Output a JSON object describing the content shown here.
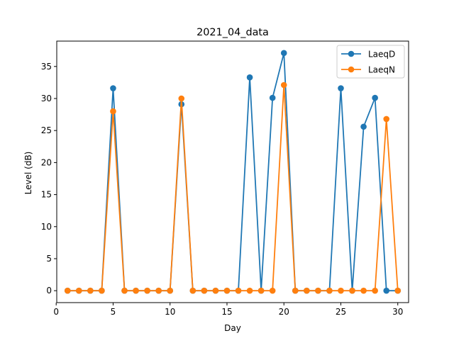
{
  "chart_data": {
    "type": "line",
    "title": "2021_04_data",
    "xlabel": "Day",
    "ylabel": "Level (dB)",
    "xlim": [
      0.05,
      30.95
    ],
    "ylim": [
      -1.86,
      38.96
    ],
    "xticks": [
      0,
      5,
      10,
      15,
      20,
      25,
      30
    ],
    "yticks": [
      0,
      5,
      10,
      15,
      20,
      25,
      30,
      35
    ],
    "grid": false,
    "legend_position": "top-right",
    "x": [
      1,
      2,
      3,
      4,
      5,
      6,
      7,
      8,
      9,
      10,
      11,
      12,
      13,
      14,
      15,
      16,
      17,
      18,
      19,
      20,
      21,
      22,
      23,
      24,
      25,
      26,
      27,
      28,
      29,
      30
    ],
    "series": [
      {
        "name": "LaeqD",
        "color": "#1f77b4",
        "values": [
          0,
          0,
          0,
          0,
          31.6,
          0,
          0,
          0,
          0,
          0,
          29.1,
          0,
          0,
          0,
          0,
          0,
          33.3,
          0,
          30.1,
          37.1,
          0,
          0,
          0,
          0,
          31.6,
          0,
          25.6,
          30.1,
          0,
          0
        ]
      },
      {
        "name": "LaeqN",
        "color": "#ff7f0e",
        "values": [
          0,
          0,
          0,
          0,
          28.0,
          0,
          0,
          0,
          0,
          0,
          30.0,
          0,
          0,
          0,
          0,
          0,
          0,
          0,
          0,
          32.1,
          0,
          0,
          0,
          0,
          0,
          0,
          0,
          0,
          26.8,
          0
        ]
      }
    ]
  }
}
